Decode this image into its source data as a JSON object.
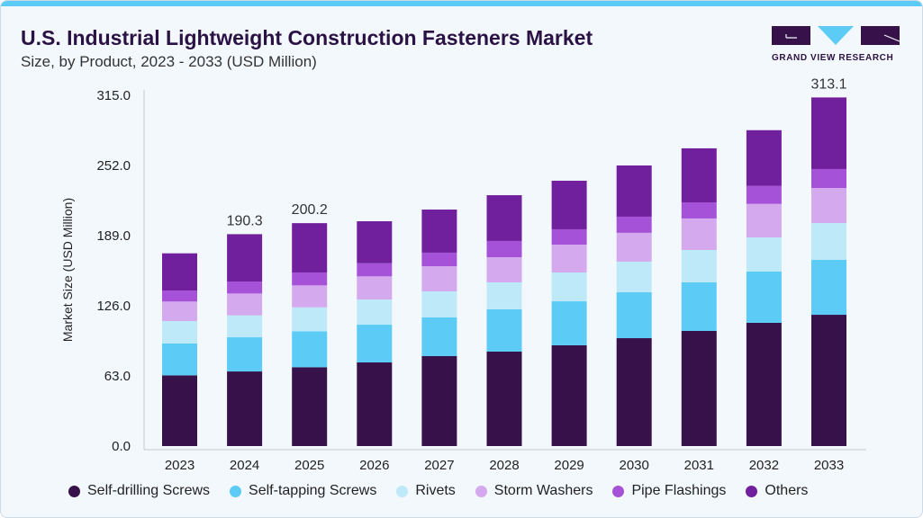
{
  "header": {
    "title": "U.S. Industrial Lightweight Construction Fasteners Market",
    "subtitle": "Size, by Product, 2023 - 2033 (USD Million)",
    "logo_text": "GRAND VIEW RESEARCH"
  },
  "chart_data": {
    "type": "bar",
    "stacked": true,
    "title": "U.S. Industrial Lightweight Construction Fasteners Market",
    "subtitle": "Size, by Product, 2023 - 2033 (USD Million)",
    "xlabel": "",
    "ylabel": "Market Size (USD Million)",
    "ylim": [
      0,
      315
    ],
    "yticks": [
      "0.0",
      "63.0",
      "126.0",
      "189.0",
      "252.0",
      "315.0"
    ],
    "categories": [
      "2023",
      "2024",
      "2025",
      "2026",
      "2027",
      "2028",
      "2029",
      "2030",
      "2031",
      "2032",
      "2033"
    ],
    "series": [
      {
        "name": "Self-drilling Screws",
        "color": "#371149",
        "values": [
          63.5,
          67.0,
          70.8,
          75.1,
          80.8,
          84.8,
          90.5,
          96.9,
          103.4,
          110.7,
          117.9
        ]
      },
      {
        "name": "Self-tapping Screws",
        "color": "#5ccbf6",
        "values": [
          28.6,
          30.7,
          32.3,
          33.9,
          34.7,
          38.0,
          39.5,
          41.2,
          43.6,
          46.0,
          49.3
        ]
      },
      {
        "name": "Rivets",
        "color": "#bde9f9",
        "values": [
          20.2,
          19.7,
          21.5,
          22.7,
          23.4,
          24.2,
          25.9,
          27.5,
          29.1,
          30.7,
          33.1
        ]
      },
      {
        "name": "Storm Washers",
        "color": "#d4a9ee",
        "values": [
          17.5,
          19.6,
          19.7,
          20.7,
          22.6,
          22.6,
          25.0,
          25.9,
          28.3,
          30.1,
          31.5
        ]
      },
      {
        "name": "Pipe Flashings",
        "color": "#a652d8",
        "values": [
          9.9,
          10.8,
          11.6,
          11.8,
          12.2,
          14.6,
          13.8,
          14.5,
          14.5,
          16.1,
          17.0
        ]
      },
      {
        "name": "Others",
        "color": "#70209d",
        "values": [
          33.4,
          42.5,
          44.3,
          37.7,
          38.7,
          41.1,
          43.6,
          46.0,
          48.5,
          50.1,
          64.3
        ]
      }
    ],
    "data_labels": {
      "2024": "190.3",
      "2025": "200.2",
      "2033": "313.1"
    },
    "legend": "bottom",
    "grid": false
  }
}
